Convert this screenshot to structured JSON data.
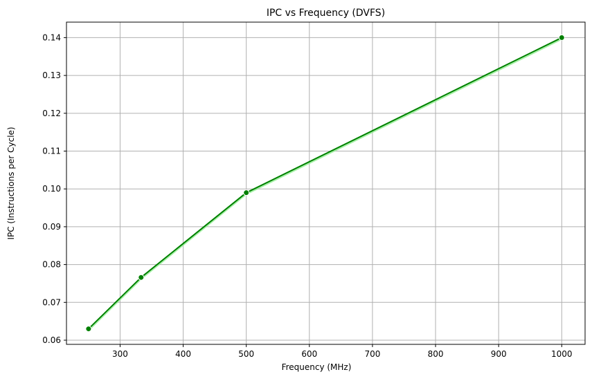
{
  "chart_data": {
    "type": "line",
    "title": "IPC vs Frequency (DVFS)",
    "xlabel": "Frequency (MHz)",
    "ylabel": "IPC (Instructions per Cycle)",
    "x_ticks": [
      300,
      400,
      500,
      600,
      700,
      800,
      900,
      1000
    ],
    "y_ticks": [
      0.06,
      0.07,
      0.08,
      0.09,
      0.1,
      0.11,
      0.12,
      0.13,
      0.14
    ],
    "y_tick_labels": [
      "0.06",
      "0.07",
      "0.08",
      "0.09",
      "0.10",
      "0.11",
      "0.12",
      "0.13",
      "0.14"
    ],
    "xlim": [
      215,
      1037
    ],
    "ylim": [
      0.0589,
      0.1441
    ],
    "grid": true,
    "series": [
      {
        "color": "#008000",
        "shadow_color": "#90ee90",
        "marker": "circle",
        "x": [
          250,
          333.3,
          500,
          1000
        ],
        "y": [
          0.063,
          0.0766,
          0.099,
          0.14
        ]
      }
    ]
  }
}
